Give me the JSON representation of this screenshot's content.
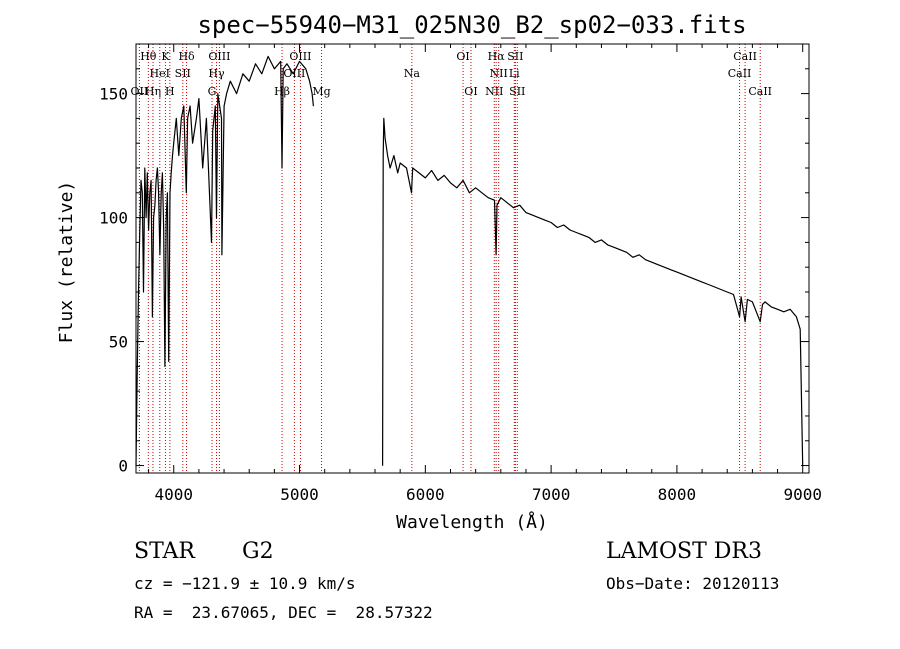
{
  "chart_data": {
    "type": "line",
    "title": "spec−55940−M31_025N30_B2_sp02−033.fits",
    "xlabel": "Wavelength (Å)",
    "ylabel": "Flux (relative)",
    "xlim": [
      3700,
      9050
    ],
    "ylim": [
      -3,
      170
    ],
    "x_ticks": [
      4000,
      5000,
      6000,
      7000,
      8000,
      9000
    ],
    "y_ticks": [
      0,
      50,
      100,
      150
    ],
    "series": [
      {
        "name": "spectrum",
        "color": "#000000",
        "gap": [
          5110,
          5660
        ],
        "points": [
          [
            3700,
            0
          ],
          [
            3710,
            40
          ],
          [
            3720,
            70
          ],
          [
            3730,
            95
          ],
          [
            3740,
            115
          ],
          [
            3750,
            110
          ],
          [
            3760,
            70
          ],
          [
            3770,
            120
          ],
          [
            3780,
            100
          ],
          [
            3790,
            118
          ],
          [
            3800,
            95
          ],
          [
            3810,
            110
          ],
          [
            3820,
            115
          ],
          [
            3830,
            60
          ],
          [
            3840,
            100
          ],
          [
            3850,
            105
          ],
          [
            3860,
            115
          ],
          [
            3870,
            120
          ],
          [
            3880,
            110
          ],
          [
            3890,
            85
          ],
          [
            3900,
            110
          ],
          [
            3910,
            118
          ],
          [
            3920,
            95
          ],
          [
            3930,
            40
          ],
          [
            3940,
            100
          ],
          [
            3950,
            110
          ],
          [
            3960,
            42
          ],
          [
            3970,
            110
          ],
          [
            3980,
            118
          ],
          [
            3990,
            125
          ],
          [
            4000,
            130
          ],
          [
            4020,
            140
          ],
          [
            4040,
            125
          ],
          [
            4060,
            140
          ],
          [
            4080,
            145
          ],
          [
            4100,
            110
          ],
          [
            4110,
            140
          ],
          [
            4130,
            145
          ],
          [
            4150,
            130
          ],
          [
            4180,
            140
          ],
          [
            4200,
            148
          ],
          [
            4230,
            120
          ],
          [
            4260,
            140
          ],
          [
            4300,
            90
          ],
          [
            4310,
            135
          ],
          [
            4330,
            145
          ],
          [
            4340,
            100
          ],
          [
            4350,
            150
          ],
          [
            4380,
            140
          ],
          [
            4383,
            85
          ],
          [
            4400,
            145
          ],
          [
            4420,
            150
          ],
          [
            4450,
            155
          ],
          [
            4500,
            150
          ],
          [
            4550,
            158
          ],
          [
            4600,
            155
          ],
          [
            4650,
            162
          ],
          [
            4700,
            158
          ],
          [
            4750,
            165
          ],
          [
            4800,
            160
          ],
          [
            4850,
            163
          ],
          [
            4861,
            120
          ],
          [
            4870,
            160
          ],
          [
            4900,
            162
          ],
          [
            4950,
            158
          ],
          [
            5000,
            163
          ],
          [
            5050,
            160
          ],
          [
            5080,
            155
          ],
          [
            5100,
            150
          ],
          [
            5110,
            145
          ],
          [
            5660,
            0
          ],
          [
            5665,
            125
          ],
          [
            5670,
            140
          ],
          [
            5680,
            132
          ],
          [
            5700,
            125
          ],
          [
            5720,
            120
          ],
          [
            5750,
            125
          ],
          [
            5780,
            118
          ],
          [
            5800,
            122
          ],
          [
            5850,
            120
          ],
          [
            5890,
            110
          ],
          [
            5900,
            120
          ],
          [
            5950,
            118
          ],
          [
            6000,
            116
          ],
          [
            6050,
            119
          ],
          [
            6100,
            115
          ],
          [
            6150,
            117
          ],
          [
            6200,
            114
          ],
          [
            6250,
            112
          ],
          [
            6300,
            115
          ],
          [
            6350,
            110
          ],
          [
            6400,
            112
          ],
          [
            6450,
            110
          ],
          [
            6500,
            108
          ],
          [
            6550,
            107
          ],
          [
            6563,
            85
          ],
          [
            6570,
            105
          ],
          [
            6600,
            108
          ],
          [
            6650,
            106
          ],
          [
            6700,
            104
          ],
          [
            6750,
            105
          ],
          [
            6800,
            102
          ],
          [
            6850,
            101
          ],
          [
            6900,
            100
          ],
          [
            6950,
            99
          ],
          [
            7000,
            98
          ],
          [
            7050,
            96
          ],
          [
            7100,
            97
          ],
          [
            7150,
            95
          ],
          [
            7200,
            94
          ],
          [
            7250,
            93
          ],
          [
            7300,
            92
          ],
          [
            7350,
            90
          ],
          [
            7400,
            91
          ],
          [
            7450,
            89
          ],
          [
            7500,
            88
          ],
          [
            7550,
            87
          ],
          [
            7600,
            86
          ],
          [
            7650,
            84
          ],
          [
            7700,
            85
          ],
          [
            7750,
            83
          ],
          [
            7800,
            82
          ],
          [
            7850,
            81
          ],
          [
            7900,
            80
          ],
          [
            7950,
            79
          ],
          [
            8000,
            78
          ],
          [
            8050,
            77
          ],
          [
            8100,
            76
          ],
          [
            8150,
            75
          ],
          [
            8200,
            74
          ],
          [
            8250,
            73
          ],
          [
            8300,
            72
          ],
          [
            8350,
            71
          ],
          [
            8400,
            70
          ],
          [
            8450,
            69
          ],
          [
            8498,
            60
          ],
          [
            8510,
            68
          ],
          [
            8542,
            58
          ],
          [
            8560,
            67
          ],
          [
            8600,
            66
          ],
          [
            8662,
            58
          ],
          [
            8680,
            65
          ],
          [
            8700,
            66
          ],
          [
            8750,
            64
          ],
          [
            8800,
            63
          ],
          [
            8850,
            62
          ],
          [
            8900,
            63
          ],
          [
            8950,
            60
          ],
          [
            8980,
            55
          ],
          [
            9000,
            0
          ]
        ]
      }
    ],
    "lines": [
      {
        "name": "OII",
        "wavelength": 3727,
        "label": "OII",
        "row": 3
      },
      {
        "name": "H-theta",
        "wavelength": 3798,
        "label": "Hθ",
        "row": 1
      },
      {
        "name": "H-eta",
        "wavelength": 3835,
        "label": "Hη",
        "row": 3
      },
      {
        "name": "HeI",
        "wavelength": 3889,
        "label": "HeI",
        "row": 2
      },
      {
        "name": "K",
        "wavelength": 3934,
        "label": "K",
        "row": 1
      },
      {
        "name": "H",
        "wavelength": 3969,
        "label": "H",
        "row": 3
      },
      {
        "name": "SII-4072",
        "wavelength": 4072,
        "label": "SII",
        "row": 2
      },
      {
        "name": "H-delta",
        "wavelength": 4102,
        "label": "Hδ",
        "row": 1
      },
      {
        "name": "G",
        "wavelength": 4304,
        "label": "G",
        "row": 3
      },
      {
        "name": "H-gamma",
        "wavelength": 4340,
        "label": "Hγ",
        "row": 2
      },
      {
        "name": "OIII-4363",
        "wavelength": 4363,
        "label": "OIII",
        "row": 1
      },
      {
        "name": "H-beta",
        "wavelength": 4861,
        "label": "Hβ",
        "row": 3
      },
      {
        "name": "OIII-4959",
        "wavelength": 4959,
        "label": "OIII",
        "row": 2
      },
      {
        "name": "OIII-5007",
        "wavelength": 5007,
        "label": "OIII",
        "row": 1
      },
      {
        "name": "Mg",
        "wavelength": 5175,
        "label": "Mg",
        "row": 3
      },
      {
        "name": "Na",
        "wavelength": 5893,
        "label": "Na",
        "row": 2
      },
      {
        "name": "OI-6300",
        "wavelength": 6300,
        "label": "OI",
        "row": 1
      },
      {
        "name": "OI-6363",
        "wavelength": 6363,
        "label": "OI",
        "row": 3
      },
      {
        "name": "NII-6548",
        "wavelength": 6548,
        "label": "NII",
        "row": 3
      },
      {
        "name": "H-alpha",
        "wavelength": 6563,
        "label": "Hα",
        "row": 1
      },
      {
        "name": "NII-6583",
        "wavelength": 6583,
        "label": "NII",
        "row": 2
      },
      {
        "name": "Li",
        "wavelength": 6707,
        "label": "Li",
        "row": 2
      },
      {
        "name": "SII-6716",
        "wavelength": 6716,
        "label": "SII",
        "row": 1
      },
      {
        "name": "SII-6731",
        "wavelength": 6731,
        "label": "SII",
        "row": 3
      },
      {
        "name": "CaII-8498",
        "wavelength": 8498,
        "label": "CaII",
        "row": 2
      },
      {
        "name": "CaII-8542",
        "wavelength": 8542,
        "label": "CaII",
        "row": 1
      },
      {
        "name": "CaII-8662",
        "wavelength": 8662,
        "label": "CaII",
        "row": 3
      }
    ],
    "line_color": "#cc0000"
  },
  "info": {
    "class": "STAR",
    "subclass": "G2",
    "cz": "cz = −121.9 ± 10.9 km/s",
    "coords": "RA =  23.67065, DEC =  28.57322",
    "survey": "LAMOST DR3",
    "obs_date": "Obs−Date: 20120113"
  }
}
